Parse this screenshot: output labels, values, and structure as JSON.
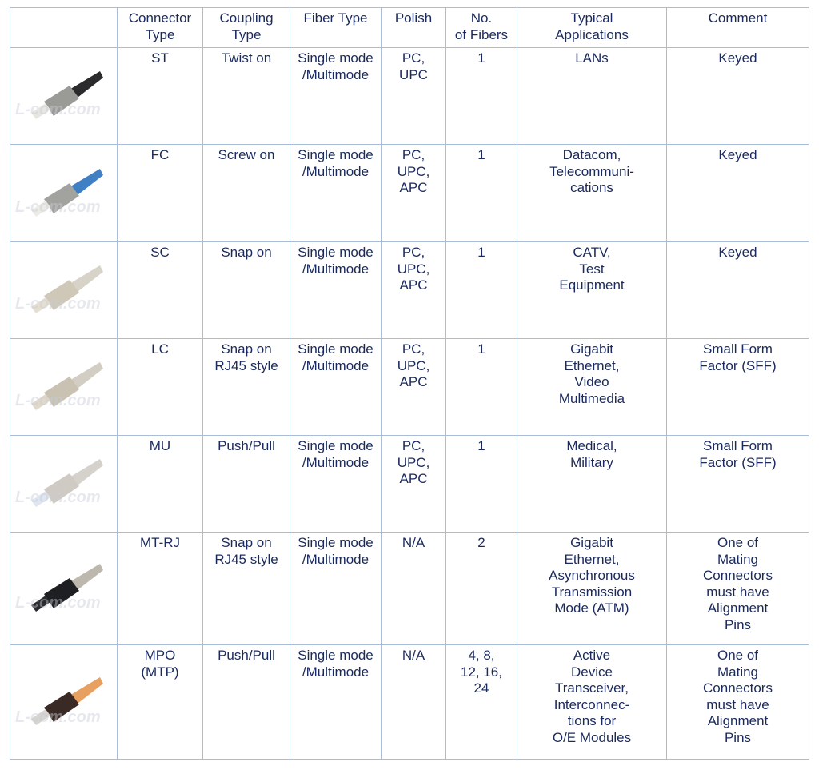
{
  "columns": [
    "",
    "Connector Type",
    "Coupling Type",
    "Fiber Type",
    "Polish",
    "No. of Fibers",
    "Typical Applications",
    "Comment"
  ],
  "header_lines": [
    [
      ""
    ],
    [
      "Connector",
      "Type"
    ],
    [
      "Coupling",
      "Type"
    ],
    [
      "Fiber Type"
    ],
    [
      "Polish"
    ],
    [
      "No.",
      "of Fibers"
    ],
    [
      "Typical",
      "Applications"
    ],
    [
      "Comment"
    ]
  ],
  "watermark": "L-com.com",
  "rows": [
    {
      "image": "st-connector-photo",
      "cable_color": "#2b2b2e",
      "body_color": "#9a9a96",
      "tip_color": "#e8e6e0",
      "connector": "ST",
      "coupling": "Twist on",
      "fiber": "Single mode\n/Multimode",
      "polish": "PC,\nUPC",
      "fibers": "1",
      "applications": "LANs",
      "comment": "Keyed"
    },
    {
      "image": "fc-connector-photo",
      "cable_color": "#3f7fc4",
      "body_color": "#a2a29e",
      "tip_color": "#ecebe6",
      "connector": "FC",
      "coupling": "Screw on",
      "fiber": "Single mode\n/Multimode",
      "polish": "PC,\nUPC,\nAPC",
      "fibers": "1",
      "applications": "Datacom,\nTelecommuni-\ncations",
      "comment": "Keyed"
    },
    {
      "image": "sc-connector-photo",
      "cable_color": "#d8d3c8",
      "body_color": "#cfc8b8",
      "tip_color": "#e6dfd0",
      "connector": "SC",
      "coupling": "Snap on",
      "fiber": "Single mode\n/Multimode",
      "polish": "PC,\nUPC,\nAPC",
      "fibers": "1",
      "applications": "CATV,\nTest\nEquipment",
      "comment": "Keyed"
    },
    {
      "image": "lc-connector-photo",
      "cable_color": "#d3cec3",
      "body_color": "#c9c1b1",
      "tip_color": "#e0d8c8",
      "connector": "LC",
      "coupling": "Snap on\nRJ45 style",
      "fiber": "Single mode\n/Multimode",
      "polish": "PC,\nUPC,\nAPC",
      "fibers": "1",
      "applications": "Gigabit\nEthernet,\nVideo\nMultimedia",
      "comment": "Small Form\nFactor (SFF)"
    },
    {
      "image": "mu-connector-photo",
      "cable_color": "#d5d2cc",
      "body_color": "#cfcbc4",
      "tip_color": "#dfe6f0",
      "connector": "MU",
      "coupling": "Push/Pull",
      "fiber": "Single mode\n/Multimode",
      "polish": "PC,\nUPC,\nAPC",
      "fibers": "1",
      "applications": "Medical,\nMilitary",
      "comment": "Small Form\nFactor (SFF)"
    },
    {
      "image": "mt-rj-connector-photo",
      "cable_color": "#bdb8ae",
      "body_color": "#1e1f22",
      "tip_color": "#2a2b2e",
      "connector": "MT-RJ",
      "coupling": "Snap on\nRJ45 style",
      "fiber": "Single mode\n/Multimode",
      "polish": "N/A",
      "fibers": "2",
      "applications": "Gigabit\nEthernet,\nAsynchronous\nTransmission\nMode (ATM)",
      "comment": "One of\nMating\nConnectors\nmust have\nAlignment\nPins"
    },
    {
      "image": "mpo-connector-photo",
      "cable_color": "#e8a060",
      "body_color": "#3a2a26",
      "tip_color": "#d6d4d0",
      "connector": "MPO\n(MTP)",
      "coupling": "Push/Pull",
      "fiber": "Single mode\n/Multimode",
      "polish": "N/A",
      "fibers": "4, 8,\n12, 16,\n24",
      "applications": "Active\nDevice\nTransceiver,\nInterconnec-\ntions for\nO/E Modules",
      "comment": "One of\nMating\nConnectors\nmust have\nAlignment\nPins"
    }
  ]
}
